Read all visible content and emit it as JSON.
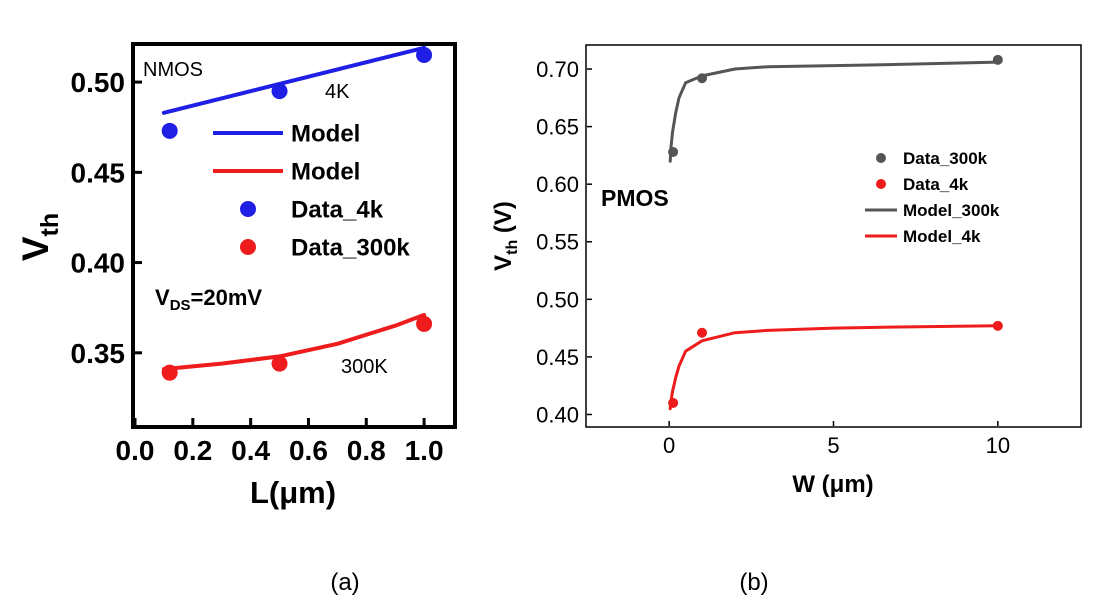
{
  "chart_data": [
    {
      "panel_label": "(a)",
      "type": "line",
      "xlabel": "L(μm)",
      "ylabel_main": "V",
      "ylabel_sub": "th",
      "xlim": [
        0.0,
        1.1
      ],
      "ylim": [
        0.31,
        0.52
      ],
      "xticks": [
        0.0,
        0.2,
        0.4,
        0.6,
        0.8,
        1.0
      ],
      "xtick_labels": [
        "0.0",
        "0.2",
        "0.4",
        "0.6",
        "0.8",
        "1.0"
      ],
      "yticks": [
        0.35,
        0.4,
        0.45,
        0.5
      ],
      "ytick_labels": [
        "0.35",
        "0.40",
        "0.45",
        "0.50"
      ],
      "annotations": {
        "device": "NMOS",
        "temp_4k": "4K",
        "temp_300k": "300K",
        "bias_main": "V",
        "bias_sub": "DS",
        "bias_value": "=20mV"
      },
      "legend": [
        {
          "label": "Model",
          "kind": "line",
          "color": "#1f1fe6"
        },
        {
          "label": "Model",
          "kind": "line",
          "color": "#ee1c1c"
        },
        {
          "label": "Data_4k",
          "kind": "marker",
          "color": "#1f1fe6"
        },
        {
          "label": "Data_300k",
          "kind": "marker",
          "color": "#ee1c1c"
        }
      ],
      "series": [
        {
          "kind": "line",
          "color": "#1f1fe6",
          "x": [
            0.1,
            1.0
          ],
          "y": [
            0.483,
            0.519
          ]
        },
        {
          "kind": "line",
          "color": "#ee1c1c",
          "x": [
            0.1,
            0.3,
            0.5,
            0.7,
            0.9,
            1.0
          ],
          "y": [
            0.341,
            0.344,
            0.348,
            0.355,
            0.365,
            0.371
          ]
        },
        {
          "kind": "scatter",
          "color": "#1f1fe6",
          "x": [
            0.12,
            0.5,
            1.0
          ],
          "y": [
            0.473,
            0.495,
            0.515
          ]
        },
        {
          "kind": "scatter",
          "color": "#ee1c1c",
          "x": [
            0.12,
            0.5,
            1.0
          ],
          "y": [
            0.339,
            0.344,
            0.366
          ]
        }
      ]
    },
    {
      "panel_label": "(b)",
      "type": "line",
      "xlabel": "W (μm)",
      "ylabel_main": "V",
      "ylabel_sub": "th",
      "ylabel_rest": " (V)",
      "xlim": [
        -2.5,
        12.5
      ],
      "ylim": [
        0.39,
        0.72
      ],
      "xticks": [
        0,
        5,
        10
      ],
      "xtick_labels": [
        "0",
        "5",
        "10"
      ],
      "yticks": [
        0.4,
        0.45,
        0.5,
        0.55,
        0.6,
        0.65,
        0.7
      ],
      "ytick_labels": [
        "0.40",
        "0.45",
        "0.50",
        "0.55",
        "0.60",
        "0.65",
        "0.70"
      ],
      "annotations": {
        "device": "PMOS"
      },
      "legend": [
        {
          "label": "Data_300k",
          "kind": "marker",
          "color": "#555555"
        },
        {
          "label": "Data_4k",
          "kind": "marker",
          "color": "#ee1c1c"
        },
        {
          "label": "Model_300k",
          "kind": "line",
          "color": "#555555"
        },
        {
          "label": "Model_4k",
          "kind": "line",
          "color": "#ee1c1c"
        }
      ],
      "series": [
        {
          "kind": "scatter",
          "color": "#555555",
          "x": [
            0.12,
            1.0,
            10.0
          ],
          "y": [
            0.628,
            0.692,
            0.708
          ]
        },
        {
          "kind": "scatter",
          "color": "#ee1c1c",
          "x": [
            0.12,
            1.0,
            10.0
          ],
          "y": [
            0.41,
            0.471,
            0.477
          ]
        },
        {
          "kind": "line",
          "color": "#555555",
          "x": [
            0.03,
            0.06,
            0.1,
            0.2,
            0.3,
            0.5,
            1.0,
            2.0,
            3.0,
            5.0,
            7.0,
            10.0
          ],
          "y": [
            0.62,
            0.633,
            0.645,
            0.662,
            0.675,
            0.688,
            0.694,
            0.7,
            0.702,
            0.703,
            0.704,
            0.706
          ]
        },
        {
          "kind": "line",
          "color": "#ee1c1c",
          "x": [
            0.03,
            0.06,
            0.1,
            0.2,
            0.3,
            0.5,
            1.0,
            2.0,
            3.0,
            5.0,
            7.0,
            10.0
          ],
          "y": [
            0.405,
            0.412,
            0.42,
            0.432,
            0.442,
            0.455,
            0.464,
            0.471,
            0.473,
            0.475,
            0.476,
            0.477
          ]
        }
      ]
    }
  ]
}
